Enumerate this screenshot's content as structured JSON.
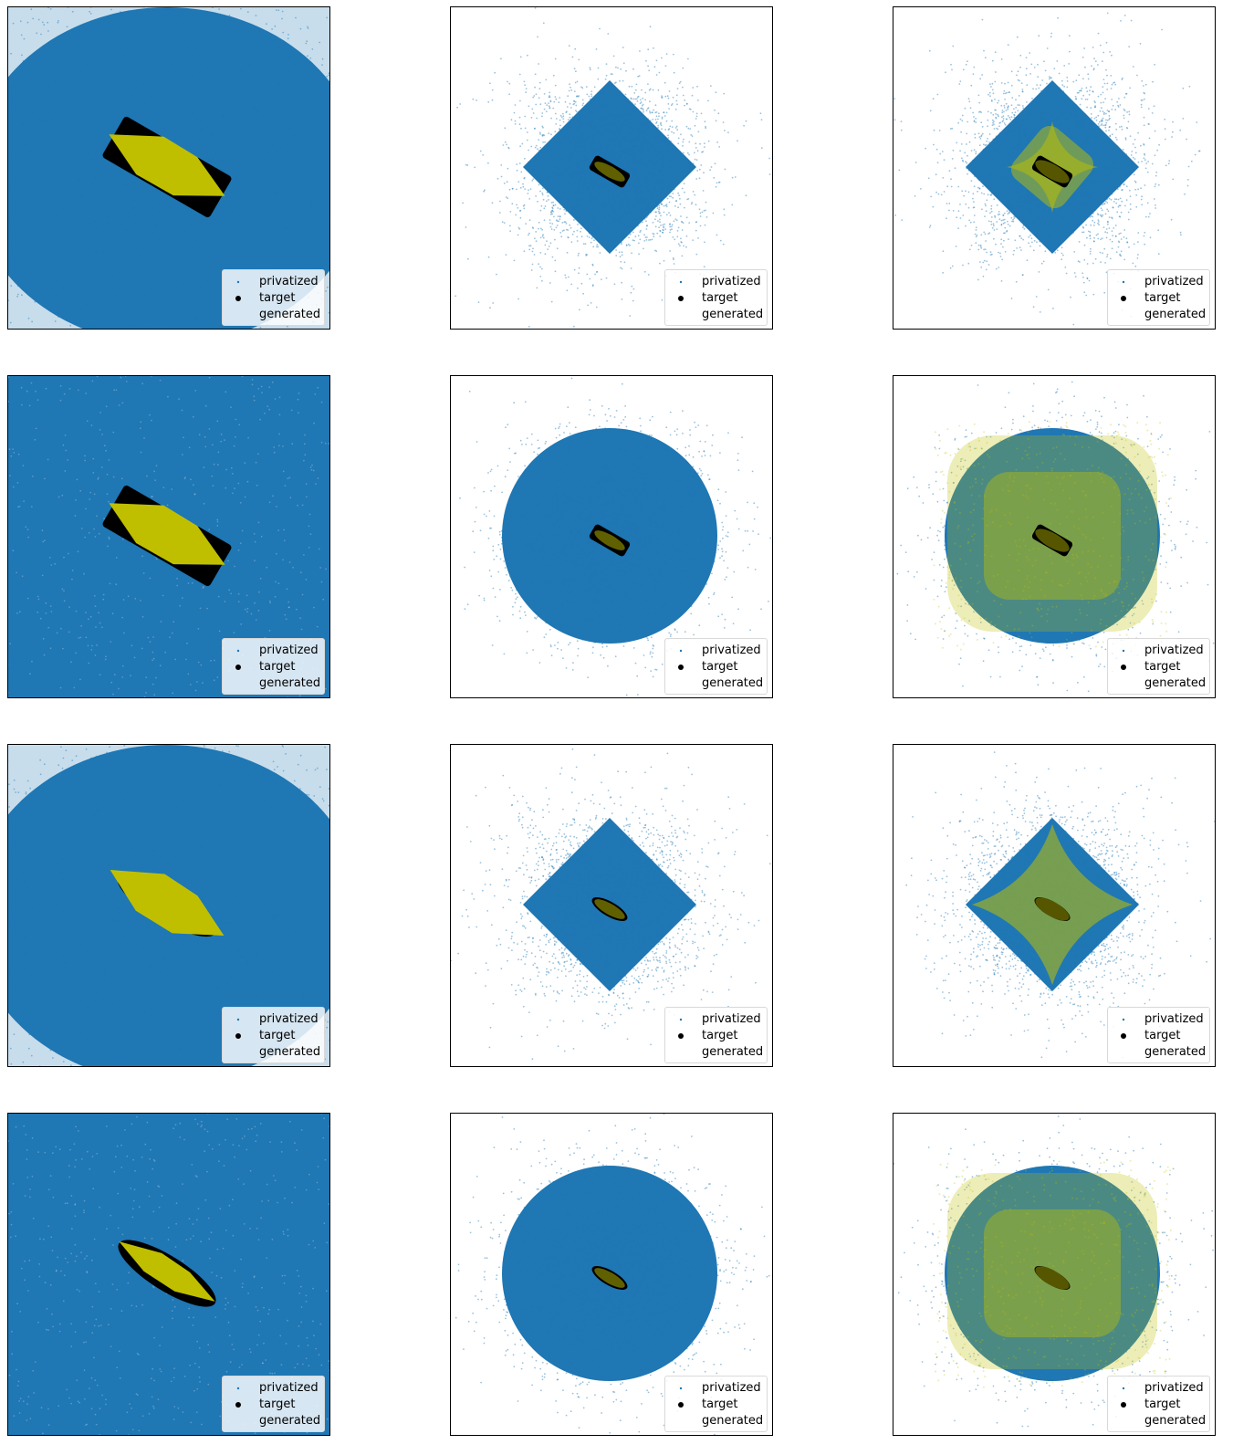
{
  "colors": {
    "privatized": "#1f77b4",
    "target": "#000000",
    "generated": "#bfbf00",
    "frame": "#000000"
  },
  "legend": {
    "entries": [
      {
        "label": "privatized",
        "marker": "tiny-dot",
        "color": "#1f77b4"
      },
      {
        "label": "target",
        "marker": "dot",
        "color": "#000000"
      },
      {
        "label": "generated",
        "marker": "none",
        "color": "#bfbf00"
      }
    ],
    "placement": "lower right"
  },
  "chart_data": [
    {
      "type": "scatter",
      "row": 1,
      "col": 1,
      "noise_shape": "wide-ellipse",
      "series": [
        {
          "name": "privatized"
        },
        {
          "name": "target",
          "shape": "rotated-rectangle",
          "angle_deg": 30
        },
        {
          "name": "generated",
          "shape": "hexagonal-lens",
          "angle_deg": 28,
          "opacity": 1.0
        }
      ],
      "grid": false,
      "ticks": false,
      "legend": "lower right"
    },
    {
      "type": "scatter",
      "row": 1,
      "col": 2,
      "noise_shape": "diamond",
      "series": [
        {
          "name": "privatized"
        },
        {
          "name": "target",
          "shape": "rotated-rectangle",
          "angle_deg": 30
        },
        {
          "name": "generated",
          "shape": "small-lens",
          "angle_deg": 30,
          "opacity": 0.5
        }
      ],
      "grid": false,
      "ticks": false,
      "legend": "lower right"
    },
    {
      "type": "scatter",
      "row": 1,
      "col": 3,
      "noise_shape": "diamond",
      "series": [
        {
          "name": "privatized"
        },
        {
          "name": "target",
          "shape": "rotated-rectangle",
          "angle_deg": 30
        },
        {
          "name": "generated",
          "shape": "rounded-diamond",
          "opacity": 0.5
        }
      ],
      "grid": false,
      "ticks": false,
      "legend": "lower right"
    },
    {
      "type": "scatter",
      "row": 2,
      "col": 1,
      "noise_shape": "filled-square",
      "series": [
        {
          "name": "privatized"
        },
        {
          "name": "target",
          "shape": "rotated-rectangle",
          "angle_deg": 30
        },
        {
          "name": "generated",
          "shape": "hexagonal-lens",
          "angle_deg": 28,
          "opacity": 1.0
        }
      ],
      "grid": false,
      "ticks": false,
      "legend": "lower right"
    },
    {
      "type": "scatter",
      "row": 2,
      "col": 2,
      "noise_shape": "disk",
      "series": [
        {
          "name": "privatized"
        },
        {
          "name": "target",
          "shape": "rotated-rectangle",
          "angle_deg": 30
        },
        {
          "name": "generated",
          "shape": "small-lens",
          "angle_deg": 30,
          "opacity": 0.5
        }
      ],
      "grid": false,
      "ticks": false,
      "legend": "lower right"
    },
    {
      "type": "scatter",
      "row": 2,
      "col": 3,
      "noise_shape": "disk",
      "series": [
        {
          "name": "privatized"
        },
        {
          "name": "target",
          "shape": "rotated-rectangle",
          "angle_deg": 30
        },
        {
          "name": "generated",
          "shape": "soft-square-cloud",
          "opacity": 0.5
        }
      ],
      "grid": false,
      "ticks": false,
      "legend": "lower right"
    },
    {
      "type": "scatter",
      "row": 3,
      "col": 1,
      "noise_shape": "wide-ellipse",
      "series": [
        {
          "name": "privatized"
        },
        {
          "name": "target",
          "shape": "ellipse",
          "angle_deg": 30
        },
        {
          "name": "generated",
          "shape": "hexagonal-lens",
          "angle_deg": 30,
          "opacity": 1.0
        }
      ],
      "grid": false,
      "ticks": false,
      "legend": "lower right"
    },
    {
      "type": "scatter",
      "row": 3,
      "col": 2,
      "noise_shape": "diamond",
      "series": [
        {
          "name": "privatized"
        },
        {
          "name": "target",
          "shape": "ellipse",
          "angle_deg": 30
        },
        {
          "name": "generated",
          "shape": "small-lens",
          "angle_deg": 30,
          "opacity": 0.5
        }
      ],
      "grid": false,
      "ticks": false,
      "legend": "lower right"
    },
    {
      "type": "scatter",
      "row": 3,
      "col": 3,
      "noise_shape": "diamond",
      "series": [
        {
          "name": "privatized"
        },
        {
          "name": "target",
          "shape": "ellipse",
          "angle_deg": 30
        },
        {
          "name": "generated",
          "shape": "concave-star",
          "opacity": 0.5
        }
      ],
      "grid": false,
      "ticks": false,
      "legend": "lower right"
    },
    {
      "type": "scatter",
      "row": 4,
      "col": 1,
      "noise_shape": "filled-square",
      "series": [
        {
          "name": "privatized"
        },
        {
          "name": "target",
          "shape": "ellipse",
          "angle_deg": 32
        },
        {
          "name": "generated",
          "shape": "narrow-lens",
          "angle_deg": 32,
          "opacity": 1.0
        }
      ],
      "grid": false,
      "ticks": false,
      "legend": "lower right"
    },
    {
      "type": "scatter",
      "row": 4,
      "col": 2,
      "noise_shape": "disk",
      "series": [
        {
          "name": "privatized"
        },
        {
          "name": "target",
          "shape": "ellipse",
          "angle_deg": 30
        },
        {
          "name": "generated",
          "shape": "small-lens",
          "angle_deg": 30,
          "opacity": 0.5
        }
      ],
      "grid": false,
      "ticks": false,
      "legend": "lower right"
    },
    {
      "type": "scatter",
      "row": 4,
      "col": 3,
      "noise_shape": "disk",
      "series": [
        {
          "name": "privatized"
        },
        {
          "name": "target",
          "shape": "ellipse",
          "angle_deg": 30
        },
        {
          "name": "generated",
          "shape": "soft-square-cloud",
          "opacity": 0.5
        }
      ],
      "grid": false,
      "ticks": false,
      "legend": "lower right"
    }
  ]
}
